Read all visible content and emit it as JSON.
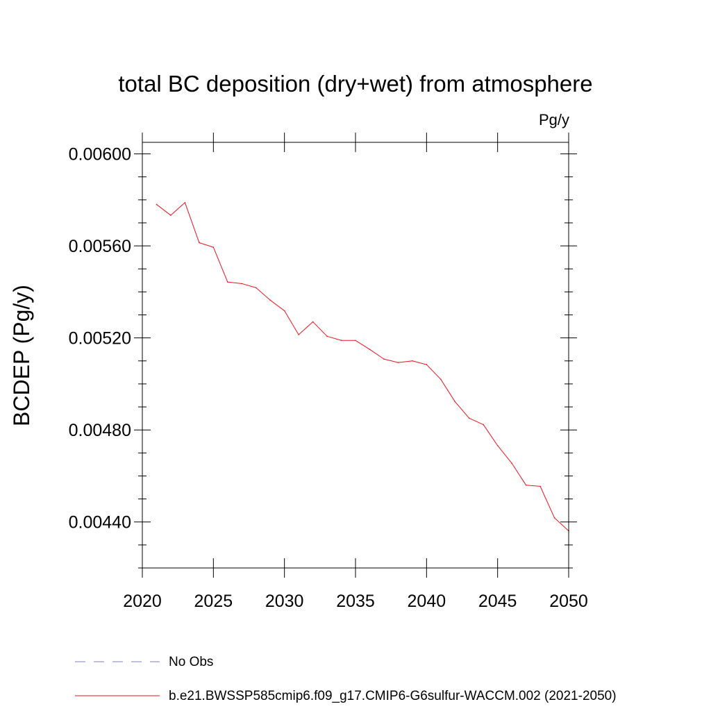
{
  "chart_data": {
    "type": "line",
    "title": "total BC deposition (dry+wet) from atmosphere",
    "units_label": "Pg/y",
    "ylabel": "BCDEP  (Pg/y)",
    "xlabel": "",
    "xlim": [
      2020,
      2050
    ],
    "ylim": [
      0.0042,
      0.00605
    ],
    "x_ticks": [
      "2020",
      "2025",
      "2030",
      "2035",
      "2040",
      "2045",
      "2050"
    ],
    "y_ticks": [
      "0.00600",
      "0.00560",
      "0.00520",
      "0.00480",
      "0.00440"
    ],
    "grid": false,
    "legend_placement": "bottom",
    "series": [
      {
        "name": "No Obs",
        "color": "#7f7fbf",
        "dash": "dashed",
        "x": [],
        "values": []
      },
      {
        "name": "b.e21.BWSSP585cmip6.f09_g17.CMIP6-G6sulfur-WACCM.002 (2021-2050)",
        "color": "#e8141c",
        "dash": "solid",
        "x": [
          2021,
          2022,
          2023,
          2024,
          2025,
          2026,
          2027,
          2028,
          2029,
          2030,
          2031,
          2032,
          2033,
          2034,
          2035,
          2036,
          2037,
          2038,
          2039,
          2040,
          2041,
          2042,
          2043,
          2044,
          2045,
          2046,
          2047,
          2048,
          2049,
          2050
        ],
        "values": [
          0.00578,
          0.005733,
          0.005788,
          0.005614,
          0.005594,
          0.005443,
          0.005436,
          0.005418,
          0.005364,
          0.005318,
          0.005214,
          0.00527,
          0.005207,
          0.005189,
          0.005189,
          0.00515,
          0.005108,
          0.005093,
          0.0051,
          0.005084,
          0.00502,
          0.004923,
          0.004851,
          0.004823,
          0.004732,
          0.004655,
          0.00456,
          0.004555,
          0.004418,
          0.004361
        ]
      }
    ]
  }
}
